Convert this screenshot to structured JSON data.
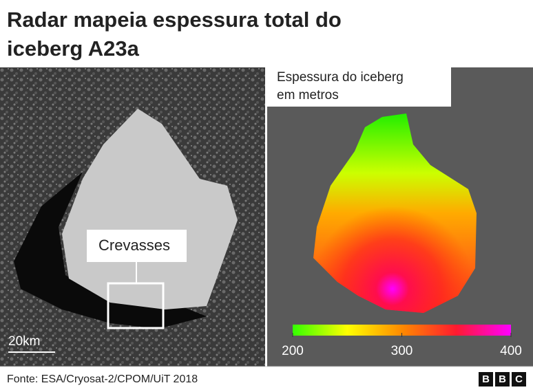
{
  "header": {
    "title": "Radar mapeia espessura total do iceberg A23a"
  },
  "left_panel": {
    "annotation": "Crevasses",
    "scale_label": "20km"
  },
  "right_panel": {
    "legend_title": "Espessura do iceberg em metros",
    "colorbar": {
      "ticks": [
        200,
        300,
        400
      ],
      "colors": [
        "#33ff00",
        "#ffff00",
        "#ff8a00",
        "#ff1a30",
        "#ff00ff"
      ]
    }
  },
  "footer": {
    "source": "Fonte: ESA/Cryosat-2/CPOM/UiT 2018",
    "logo": [
      "B",
      "B",
      "C"
    ]
  }
}
